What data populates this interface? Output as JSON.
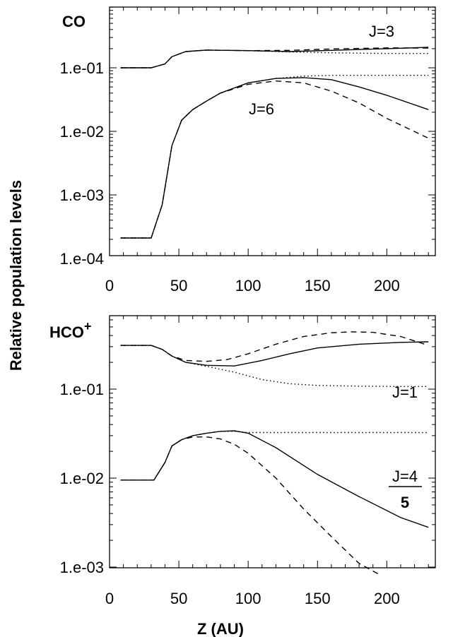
{
  "figure": {
    "ylabel": "Relative population levels",
    "xlabel": "Z (AU)"
  },
  "chart_data": [
    {
      "type": "line",
      "title": "CO",
      "xlabel": "",
      "ylabel": "Relative population levels",
      "xlim": [
        0,
        235
      ],
      "ylim": [
        0.00013,
        1.0
      ],
      "yscale": "log",
      "xticks": [
        0,
        50,
        100,
        150,
        200
      ],
      "xtick_labels": [
        "0",
        "50",
        "100",
        "150",
        "200"
      ],
      "yticks": [
        0.1,
        0.01,
        0.001,
        0.0001
      ],
      "ytick_labels": [
        "1.e-01",
        "1.e-02",
        "1.e-03",
        "1.e-04"
      ],
      "grid": false,
      "annotations": [
        "J=3",
        "J=6"
      ],
      "series": [
        {
          "group": "J=3",
          "style": "solid",
          "x": [
            8,
            30,
            40,
            45,
            55,
            70,
            100,
            130,
            160,
            200,
            230
          ],
          "y": [
            0.1,
            0.1,
            0.115,
            0.15,
            0.18,
            0.19,
            0.186,
            0.18,
            0.188,
            0.2,
            0.21
          ]
        },
        {
          "group": "J=3",
          "style": "dashed",
          "x": [
            8,
            30,
            40,
            45,
            55,
            70,
            100,
            130,
            160,
            200,
            230
          ],
          "y": [
            0.1,
            0.1,
            0.115,
            0.15,
            0.18,
            0.19,
            0.186,
            0.188,
            0.198,
            0.206,
            0.204
          ]
        },
        {
          "group": "J=3",
          "style": "dotted",
          "x": [
            8,
            30,
            40,
            45,
            55,
            70,
            100,
            130,
            160,
            200,
            230
          ],
          "y": [
            0.1,
            0.1,
            0.115,
            0.15,
            0.18,
            0.19,
            0.186,
            0.178,
            0.172,
            0.168,
            0.168
          ]
        },
        {
          "group": "J=6",
          "style": "solid",
          "x": [
            8,
            30,
            38,
            45,
            52,
            60,
            70,
            80,
            100,
            120,
            140,
            160,
            180,
            200,
            230
          ],
          "y": [
            0.00021,
            0.00021,
            0.0007,
            0.006,
            0.015,
            0.022,
            0.03,
            0.04,
            0.058,
            0.068,
            0.07,
            0.065,
            0.05,
            0.037,
            0.022
          ]
        },
        {
          "group": "J=6",
          "style": "dashed",
          "x": [
            8,
            30,
            38,
            45,
            52,
            60,
            70,
            80,
            100,
            120,
            140,
            160,
            180,
            200,
            230
          ],
          "y": [
            0.00021,
            0.00021,
            0.0007,
            0.006,
            0.015,
            0.022,
            0.03,
            0.04,
            0.055,
            0.062,
            0.058,
            0.043,
            0.028,
            0.016,
            0.0078
          ]
        },
        {
          "group": "J=6",
          "style": "dotted",
          "x": [
            8,
            30,
            38,
            45,
            52,
            60,
            70,
            80,
            100,
            120,
            140,
            160,
            180,
            200,
            230
          ],
          "y": [
            0.00021,
            0.00021,
            0.0007,
            0.006,
            0.015,
            0.022,
            0.03,
            0.04,
            0.058,
            0.068,
            0.074,
            0.076,
            0.076,
            0.076,
            0.076
          ]
        }
      ]
    },
    {
      "type": "line",
      "title": "HCO+",
      "xlabel": "Z (AU)",
      "ylabel": "Relative population levels",
      "xlim": [
        0,
        235
      ],
      "ylim": [
        0.001,
        0.6
      ],
      "yscale": "log",
      "xticks": [
        0,
        50,
        100,
        150,
        200
      ],
      "xtick_labels": [
        "0",
        "50",
        "100",
        "150",
        "200"
      ],
      "yticks": [
        0.1,
        0.01,
        0.001
      ],
      "ytick_labels": [
        "1.e-01",
        "1.e-02",
        "1.e-03"
      ],
      "grid": false,
      "annotations": [
        "J=1",
        "J=4",
        "5"
      ],
      "series": [
        {
          "group": "J=1",
          "style": "solid",
          "x": [
            8,
            30,
            38,
            45,
            55,
            70,
            90,
            110,
            130,
            150,
            180,
            210,
            230
          ],
          "y": [
            0.31,
            0.31,
            0.28,
            0.235,
            0.2,
            0.185,
            0.182,
            0.21,
            0.25,
            0.29,
            0.32,
            0.335,
            0.34
          ]
        },
        {
          "group": "J=1",
          "style": "dashed",
          "x": [
            8,
            30,
            38,
            45,
            55,
            70,
            85,
            100,
            120,
            140,
            160,
            175,
            190,
            210,
            230
          ],
          "y": [
            0.31,
            0.31,
            0.28,
            0.235,
            0.21,
            0.205,
            0.215,
            0.25,
            0.32,
            0.39,
            0.43,
            0.44,
            0.435,
            0.39,
            0.31
          ]
        },
        {
          "group": "J=1",
          "style": "dotted",
          "x": [
            8,
            30,
            38,
            45,
            55,
            70,
            90,
            110,
            130,
            150,
            180,
            210,
            230
          ],
          "y": [
            0.31,
            0.31,
            0.28,
            0.235,
            0.2,
            0.18,
            0.155,
            0.128,
            0.115,
            0.11,
            0.108,
            0.107,
            0.107
          ]
        },
        {
          "group": "J=4",
          "style": "solid",
          "x": [
            8,
            28,
            32,
            40,
            45,
            52,
            60,
            70,
            80,
            90,
            100,
            120,
            150,
            180,
            210,
            230
          ],
          "y": [
            0.0095,
            0.0095,
            0.0095,
            0.015,
            0.023,
            0.027,
            0.03,
            0.032,
            0.0335,
            0.034,
            0.032,
            0.022,
            0.011,
            0.0062,
            0.0036,
            0.0028
          ]
        },
        {
          "group": "J=4",
          "style": "dashed",
          "x": [
            8,
            28,
            32,
            40,
            45,
            52,
            60,
            70,
            80,
            90,
            100,
            120,
            140,
            160,
            180,
            195
          ],
          "y": [
            0.0095,
            0.0095,
            0.0095,
            0.015,
            0.023,
            0.027,
            0.029,
            0.029,
            0.0275,
            0.024,
            0.019,
            0.01,
            0.0045,
            0.0022,
            0.0011,
            0.00082
          ]
        },
        {
          "group": "J=4",
          "style": "dotted",
          "x": [
            8,
            28,
            32,
            40,
            45,
            52,
            60,
            70,
            80,
            90,
            100,
            120,
            150,
            180,
            210,
            230
          ],
          "y": [
            0.0095,
            0.0095,
            0.0095,
            0.015,
            0.023,
            0.027,
            0.03,
            0.032,
            0.0335,
            0.0335,
            0.0325,
            0.0325,
            0.0325,
            0.0325,
            0.0325,
            0.0325
          ]
        }
      ]
    }
  ]
}
